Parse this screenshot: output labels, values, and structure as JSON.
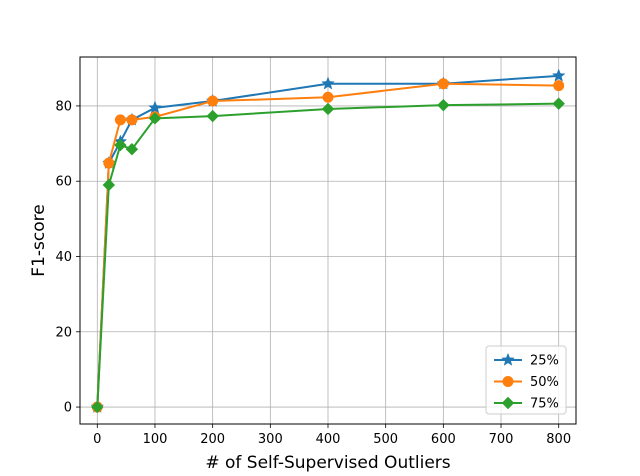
{
  "chart_data": {
    "type": "line",
    "title": "",
    "xlabel": "# of Self-Supervised Outliers",
    "ylabel": "F1-score",
    "xlim": [
      -30,
      830
    ],
    "ylim": [
      -4.5,
      93
    ],
    "xticks": [
      0,
      100,
      200,
      300,
      400,
      500,
      600,
      700,
      800
    ],
    "yticks": [
      0,
      20,
      40,
      60,
      80
    ],
    "grid": true,
    "legend_position": "lower right",
    "series": [
      {
        "name": "25%",
        "color": "#1f77b4",
        "marker": "star",
        "x": [
          0,
          20,
          40,
          60,
          100,
          200,
          400,
          600,
          800
        ],
        "y": [
          0,
          64.8,
          70.5,
          76.3,
          79.5,
          81.3,
          85.9,
          85.9,
          88.0
        ]
      },
      {
        "name": "50%",
        "color": "#ff7f0e",
        "marker": "circle",
        "x": [
          0,
          20,
          40,
          60,
          100,
          200,
          400,
          600,
          800
        ],
        "y": [
          0,
          64.8,
          76.3,
          76.3,
          77.1,
          81.3,
          82.3,
          85.9,
          85.4
        ]
      },
      {
        "name": "75%",
        "color": "#2ca02c",
        "marker": "diamond",
        "x": [
          0,
          20,
          40,
          60,
          100,
          200,
          400,
          600,
          800
        ],
        "y": [
          0,
          59.0,
          69.6,
          68.5,
          76.7,
          77.3,
          79.2,
          80.2,
          80.6
        ]
      }
    ]
  }
}
